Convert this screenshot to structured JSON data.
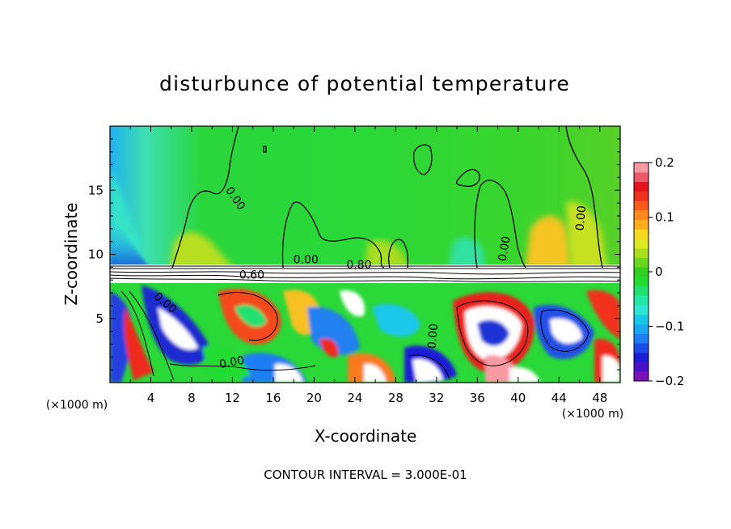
{
  "chart_data": {
    "type": "heatmap",
    "title": "disturbunce of potential temperature",
    "xlabel": "X-coordinate",
    "ylabel": "Z-coordinate",
    "x_unit": "(×1000 m)",
    "z_unit": "(×1000 m)",
    "xlim": [
      0,
      50
    ],
    "ylim": [
      0,
      20
    ],
    "x_ticks": [
      4,
      8,
      12,
      16,
      20,
      24,
      28,
      32,
      36,
      40,
      44,
      48
    ],
    "y_ticks": [
      5,
      10,
      15
    ],
    "colorbar": {
      "range": [
        -0.2,
        0.2
      ],
      "tick_labels": [
        "0.2",
        "0.1",
        "0",
        "−0.1",
        "−0.2"
      ],
      "tick_values": [
        0.2,
        0.1,
        0,
        -0.1,
        -0.2
      ],
      "colors": [
        "#7a12b8",
        "#4a12c8",
        "#1c1ed6",
        "#1c4be6",
        "#1f7ef2",
        "#1aa8f4",
        "#18c8ea",
        "#2ee6d6",
        "#23e8a8",
        "#22e070",
        "#22dc30",
        "#30d020",
        "#6ad61e",
        "#a8de1e",
        "#dce820",
        "#f8d820",
        "#fcae1e",
        "#fc8a1e",
        "#f85a1e",
        "#f0301e",
        "#e4141e",
        "#ec5a6a",
        "#f89aa4"
      ]
    },
    "contour_labels": [
      {
        "text": "0.00",
        "x": 12.0,
        "z": 14.2
      },
      {
        "text": "0.00",
        "x": 19.2,
        "z": 9.3
      },
      {
        "text": "0.80",
        "x": 24.4,
        "z": 8.9
      },
      {
        "text": "0.60",
        "x": 13.9,
        "z": 8.1
      },
      {
        "text": "0.00",
        "x": 39.0,
        "z": 10.4
      },
      {
        "text": "0.00",
        "x": 46.5,
        "z": 12.8
      },
      {
        "text": "0.00",
        "x": 5.2,
        "z": 6.0
      },
      {
        "text": "0.00",
        "x": 12.0,
        "z": 1.3
      },
      {
        "text": "0.00",
        "x": 32.0,
        "z": 3.6
      }
    ],
    "contour_interval_note": "CONTOUR INTERVAL = 3.000E-01"
  }
}
